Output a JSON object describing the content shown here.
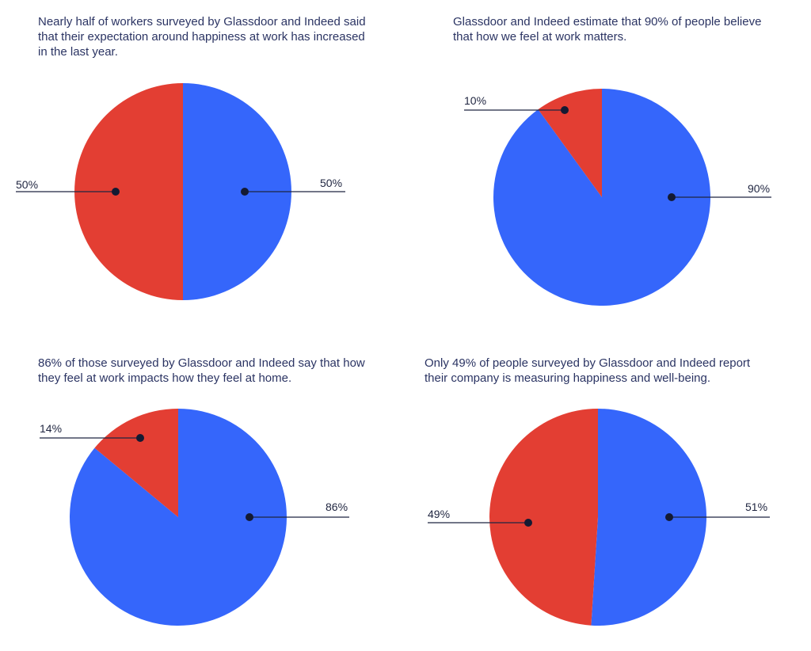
{
  "colors": {
    "primary": "#3566fb",
    "secondary": "#e33e33",
    "line": "#1f2540",
    "dot": "#141a33"
  },
  "chart_data": [
    {
      "type": "pie",
      "title": "Nearly half of workers surveyed by Glassdoor and Indeed said that their expectation around happiness at work has increased in the last year.",
      "values": [
        50,
        50
      ],
      "labels": [
        "50%",
        "50%"
      ]
    },
    {
      "type": "pie",
      "title": "Glassdoor and Indeed estimate that 90% of people believe that how we feel at work matters.",
      "values": [
        90,
        10
      ],
      "labels": [
        "90%",
        "10%"
      ]
    },
    {
      "type": "pie",
      "title": "86% of those surveyed by Glassdoor and Indeed say that how they feel at work impacts how they feel at home.",
      "values": [
        86,
        14
      ],
      "labels": [
        "86%",
        "14%"
      ]
    },
    {
      "type": "pie",
      "title": "Only 49% of people surveyed by Glassdoor and Indeed report their company is measuring happiness and well-being.",
      "values": [
        51,
        49
      ],
      "labels": [
        "51%",
        "49%"
      ]
    }
  ]
}
